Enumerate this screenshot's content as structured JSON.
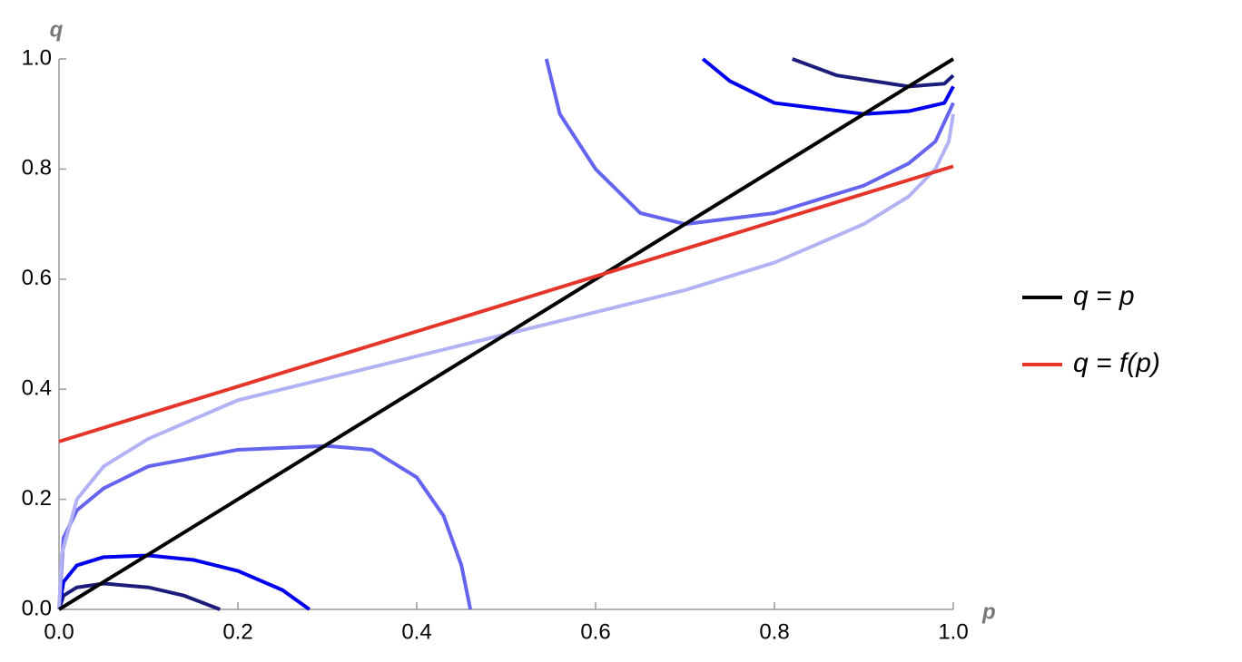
{
  "chart_data": {
    "type": "line",
    "x_label": "p",
    "y_label": "q",
    "xlim": [
      0,
      1
    ],
    "ylim": [
      0,
      1
    ],
    "xticks": [
      {
        "value": 0,
        "label": "0.0"
      },
      0.2,
      0.4,
      0.6,
      0.8,
      {
        "value": 1,
        "label": "1.0"
      }
    ],
    "yticks": [
      {
        "value": 0,
        "label": "0.0"
      },
      0.2,
      0.4,
      0.6,
      0.8,
      {
        "value": 1,
        "label": "1.0"
      }
    ],
    "legend": "right",
    "series": [
      {
        "color": "#1c1c7a",
        "x": [
          0,
          0.005,
          0.02,
          0.05,
          0.1,
          0.14,
          0.18
        ],
        "values": [
          0,
          0.025,
          0.04,
          0.047,
          0.04,
          0.025,
          0
        ]
      },
      {
        "color": "#0000ee",
        "x": [
          0,
          0.005,
          0.02,
          0.05,
          0.1,
          0.15,
          0.2,
          0.25,
          0.28
        ],
        "values": [
          0,
          0.05,
          0.08,
          0.095,
          0.098,
          0.09,
          0.07,
          0.035,
          0
        ]
      },
      {
        "color": "#6464ee",
        "x": [
          0,
          0.005,
          0.02,
          0.05,
          0.1,
          0.2,
          0.3,
          0.35,
          0.4,
          0.43,
          0.45,
          0.46
        ],
        "values": [
          0,
          0.13,
          0.18,
          0.22,
          0.26,
          0.29,
          0.297,
          0.29,
          0.24,
          0.17,
          0.08,
          0
        ]
      },
      {
        "color": "#b2b2f4",
        "x": [
          0,
          0.003,
          0.02,
          0.05,
          0.1,
          0.2,
          0.3,
          0.4,
          0.5,
          0.6,
          0.7,
          0.8,
          0.9,
          0.95,
          0.98,
          0.995,
          1
        ],
        "values": [
          0,
          0.1,
          0.2,
          0.26,
          0.31,
          0.38,
          0.42,
          0.46,
          0.5,
          0.54,
          0.58,
          0.63,
          0.7,
          0.75,
          0.8,
          0.85,
          0.9
        ]
      },
      {
        "color": "#6464ee",
        "x": [
          0.545,
          0.56,
          0.6,
          0.65,
          0.7,
          0.8,
          0.9,
          0.95,
          0.98,
          1
        ],
        "values": [
          1,
          0.9,
          0.8,
          0.72,
          0.7,
          0.72,
          0.77,
          0.81,
          0.85,
          0.92
        ]
      },
      {
        "color": "#0000ee",
        "x": [
          0.72,
          0.75,
          0.8,
          0.9,
          0.95,
          0.99,
          1
        ],
        "values": [
          1,
          0.96,
          0.92,
          0.9,
          0.905,
          0.92,
          0.95
        ]
      },
      {
        "color": "#1c1c7a",
        "x": [
          0.82,
          0.87,
          0.95,
          0.99,
          1
        ],
        "values": [
          1,
          0.97,
          0.95,
          0.955,
          0.97
        ]
      },
      {
        "name": "q = p",
        "color": "#000000",
        "x": [
          0,
          1
        ],
        "values": [
          0,
          1
        ]
      },
      {
        "name": "q = f(p)",
        "color": "#e4352b",
        "x": [
          0,
          1
        ],
        "values": [
          0.305,
          0.805
        ]
      }
    ]
  }
}
